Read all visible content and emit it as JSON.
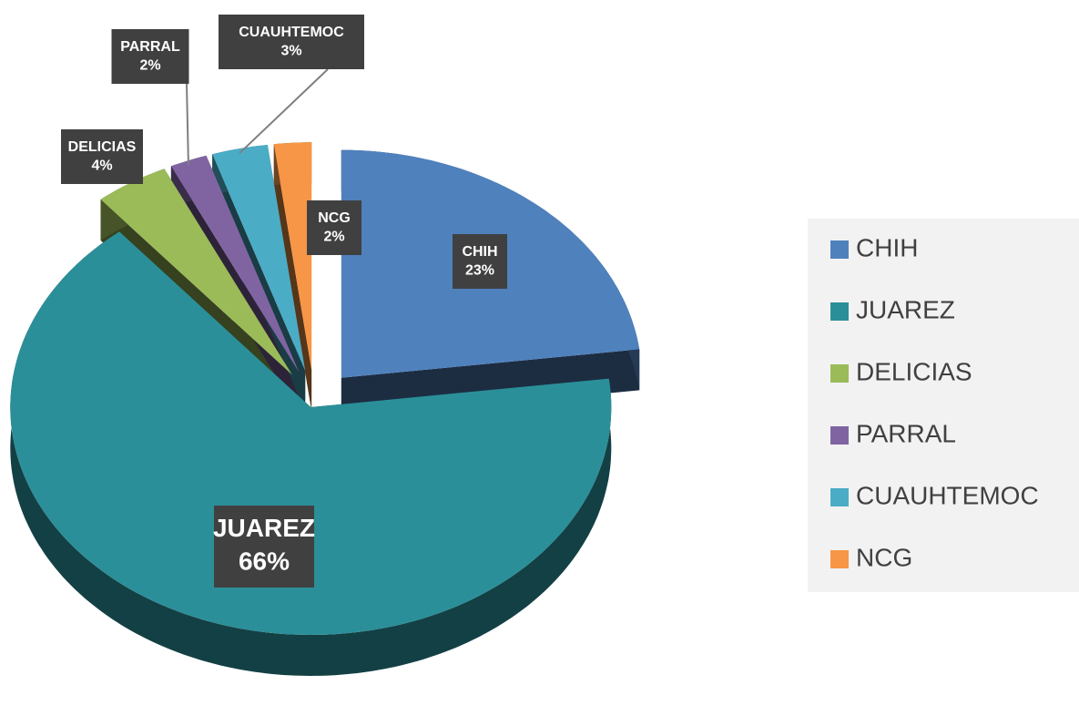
{
  "chart_data": {
    "type": "pie",
    "categories": [
      "CHIH",
      "JUAREZ",
      "DELICIAS",
      "PARRAL",
      "CUAUHTEMOC",
      "NCG"
    ],
    "values": [
      23,
      66,
      4,
      2,
      3,
      2
    ],
    "value_labels": [
      "23%",
      "66%",
      "4%",
      "2%",
      "3%",
      "2%"
    ],
    "colors": [
      "#4f81bd",
      "#2b8f99",
      "#9bbb59",
      "#8064a2",
      "#4bacc6",
      "#f79646"
    ],
    "legend": "right"
  }
}
